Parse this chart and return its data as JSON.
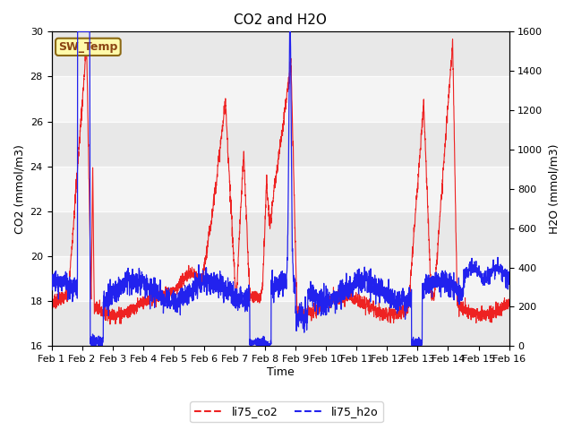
{
  "title": "CO2 and H2O",
  "ylabel_left": "CO2 (mmol/m3)",
  "ylabel_right": "H2O (mmol/m3)",
  "xlabel": "Time",
  "ylim_left": [
    16,
    30
  ],
  "ylim_right": [
    0,
    1600
  ],
  "xlim": [
    0,
    15
  ],
  "xtick_positions": [
    0,
    1,
    2,
    3,
    4,
    5,
    6,
    7,
    8,
    9,
    10,
    11,
    12,
    13,
    14,
    15
  ],
  "xtick_labels": [
    "Feb 1",
    "Feb 2",
    "Feb 3",
    "Feb 4",
    "Feb 5",
    "Feb 6",
    "Feb 7",
    "Feb 8",
    "Feb 9",
    "Feb 10",
    "Feb 11",
    "Feb 12",
    "Feb 13",
    "Feb 14",
    "Feb 15",
    "Feb 16"
  ],
  "yticks_left": [
    16,
    18,
    20,
    22,
    24,
    26,
    28,
    30
  ],
  "yticks_right": [
    0,
    200,
    400,
    600,
    800,
    1000,
    1200,
    1400,
    1600
  ],
  "annotation_text": "SW_Temp",
  "annotation_fgcolor": "#8B4513",
  "annotation_bgcolor": "#FFFAAA",
  "annotation_edgecolor": "#8B6914",
  "color_co2": "#EE2222",
  "color_h2o": "#2222EE",
  "legend_co2": "li75_co2",
  "legend_h2o": "li75_h2o",
  "plot_bgcolor": "#E8E8E8",
  "band_white_alpha": 0.55,
  "fig_width": 6.4,
  "fig_height": 4.8,
  "dpi": 100
}
